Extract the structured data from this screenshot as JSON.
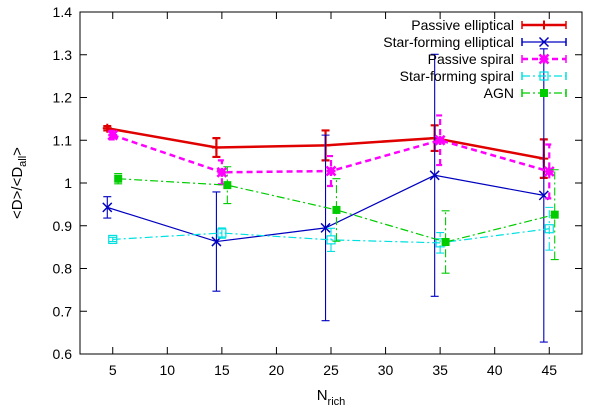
{
  "chart_data": {
    "type": "line",
    "title": "",
    "xlabel": "N",
    "xlabel_sub": "rich",
    "ylabel": "<D>/<D",
    "ylabel_sub": "all",
    "ylabel_suffix": ">",
    "xlim": [
      2,
      48
    ],
    "ylim": [
      0.6,
      1.4
    ],
    "xticks": [
      5,
      10,
      15,
      20,
      25,
      30,
      35,
      40,
      45
    ],
    "yticks": [
      0.6,
      0.7,
      0.8,
      0.9,
      1.0,
      1.1,
      1.2,
      1.3,
      1.4
    ],
    "ytick_labels": [
      "0.6",
      "0.7",
      "0.8",
      "0.9",
      "1",
      "1.1",
      "1.2",
      "1.3",
      "1.4"
    ],
    "grid": false,
    "legend_position": "top-right",
    "series": [
      {
        "name": "Passive elliptical",
        "color": "#e00000",
        "line_style": "solid",
        "marker": "plus",
        "x": [
          4.5,
          14.5,
          24.5,
          34.5,
          44.5
        ],
        "y": [
          1.128,
          1.083,
          1.088,
          1.105,
          1.057
        ],
        "err": [
          0.005,
          0.022,
          0.035,
          0.03,
          0.045
        ]
      },
      {
        "name": "Star-forming elliptical",
        "color": "#0000c0",
        "line_style": "solid",
        "marker": "x",
        "x": [
          4.5,
          14.5,
          24.5,
          34.5,
          44.5
        ],
        "y": [
          0.943,
          0.863,
          0.895,
          1.018,
          0.971
        ],
        "err": [
          0.025,
          0.116,
          0.217,
          0.283,
          0.343
        ]
      },
      {
        "name": "Passive spiral",
        "color": "#ff00ff",
        "line_style": "dashed",
        "marker": "star",
        "x": [
          5.0,
          15.0,
          25.0,
          35.0,
          45.0
        ],
        "y": [
          1.112,
          1.025,
          1.028,
          1.1,
          1.027
        ],
        "err": [
          0.01,
          0.028,
          0.035,
          0.058,
          0.063
        ]
      },
      {
        "name": "Star-forming spiral",
        "color": "#00e0e0",
        "line_style": "dashdot",
        "marker": "square-open",
        "x": [
          5.0,
          15.0,
          25.0,
          35.0,
          45.0
        ],
        "y": [
          0.868,
          0.883,
          0.867,
          0.86,
          0.893
        ],
        "err": [
          0.005,
          0.012,
          0.027,
          0.024,
          0.05
        ]
      },
      {
        "name": "AGN",
        "color": "#00cc00",
        "line_style": "dashdot",
        "marker": "square-filled",
        "x": [
          5.5,
          15.5,
          25.5,
          35.5,
          45.5
        ],
        "y": [
          1.01,
          0.995,
          0.937,
          0.862,
          0.926
        ],
        "err": [
          0.012,
          0.043,
          0.073,
          0.073,
          0.105
        ]
      }
    ]
  }
}
